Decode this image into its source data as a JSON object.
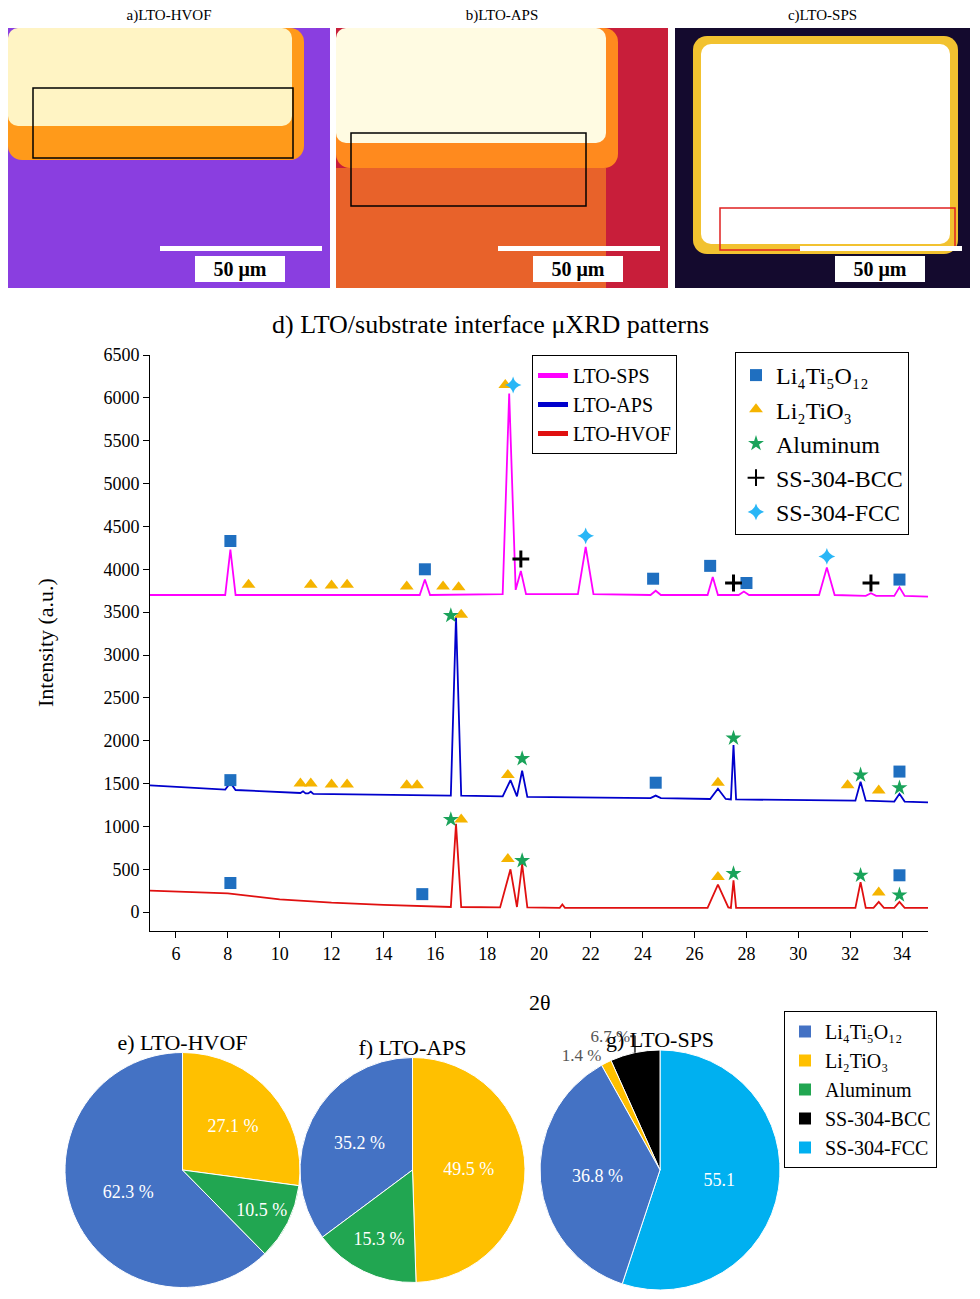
{
  "images": [
    {
      "title": "a)LTO-HVOF",
      "scale_bar": "50 μm"
    },
    {
      "title": "b)LTO-APS",
      "scale_bar": "50 μm"
    },
    {
      "title": "c)LTO-SPS",
      "scale_bar": "50 μm"
    }
  ],
  "chart_data": [
    {
      "type": "line",
      "title": "d) LTO/substrate interface μXRD patterns",
      "x_label": "2θ",
      "y_label": "Intensity (a.u.)",
      "xlim": [
        5,
        35
      ],
      "xticks": [
        6,
        8,
        10,
        12,
        14,
        16,
        18,
        20,
        22,
        24,
        26,
        28,
        30,
        32,
        34
      ],
      "ylim": [
        -220,
        6500
      ],
      "yticks": [
        0,
        500,
        1000,
        1500,
        2000,
        2500,
        3000,
        3500,
        4000,
        4500,
        5000,
        5500,
        6000,
        6500
      ],
      "grid": false,
      "legend": "top right",
      "series": [
        {
          "name": "LTO-SPS",
          "type": "line",
          "color": "#ff00ff",
          "x": [
            5,
            7.9,
            8.1,
            8.3,
            15.4,
            15.6,
            15.8,
            18.6,
            18.85,
            19.1,
            19.3,
            19.5,
            21.5,
            21.8,
            22.1,
            24.3,
            24.5,
            24.7,
            26.5,
            26.7,
            26.9,
            27.7,
            27.9,
            28.1,
            30.8,
            31.1,
            31.4,
            32.6,
            32.8,
            33.0,
            33.7,
            33.9,
            34.1,
            35
          ],
          "values": [
            3700,
            3700,
            4230,
            3700,
            3700,
            3880,
            3700,
            3710,
            6050,
            3760,
            3980,
            3710,
            3710,
            4260,
            3710,
            3700,
            3750,
            3700,
            3700,
            3910,
            3700,
            3700,
            3740,
            3700,
            3700,
            4020,
            3700,
            3690,
            3720,
            3690,
            3690,
            3790,
            3690,
            3680
          ]
        },
        {
          "name": "LTO-APS",
          "type": "line",
          "color": "#0000cc",
          "x": [
            5,
            7.9,
            8.1,
            8.3,
            10.8,
            10.9,
            11.0,
            11.1,
            11.2,
            11.3,
            16.6,
            16.8,
            17.0,
            18.6,
            18.9,
            19.15,
            19.35,
            19.55,
            24.3,
            24.5,
            24.7,
            26.6,
            26.9,
            27.2,
            27.4,
            27.5,
            27.6,
            32.2,
            32.4,
            32.6,
            33.7,
            33.9,
            34.1,
            35
          ],
          "values": [
            1480,
            1430,
            1510,
            1425,
            1390,
            1410,
            1385,
            1385,
            1405,
            1380,
            1360,
            3450,
            1360,
            1350,
            1540,
            1350,
            1650,
            1345,
            1330,
            1360,
            1330,
            1320,
            1440,
            1320,
            1315,
            1950,
            1315,
            1300,
            1520,
            1300,
            1290,
            1380,
            1290,
            1280
          ]
        },
        {
          "name": "LTO-HVOF",
          "type": "line",
          "color": "#e01010",
          "x": [
            5,
            8,
            10,
            12,
            14,
            16,
            16.6,
            16.8,
            17.0,
            18.5,
            18.9,
            19.15,
            19.35,
            19.55,
            20.8,
            20.9,
            21.0,
            26.5,
            26.9,
            27.3,
            27.4,
            27.5,
            27.6,
            32.2,
            32.4,
            32.6,
            32.9,
            33.1,
            33.3,
            33.7,
            33.9,
            34.1,
            35
          ],
          "values": [
            250,
            220,
            150,
            110,
            85,
            65,
            60,
            1030,
            60,
            55,
            500,
            60,
            560,
            55,
            50,
            90,
            50,
            50,
            320,
            55,
            50,
            370,
            50,
            50,
            350,
            50,
            50,
            120,
            50,
            50,
            120,
            50,
            50
          ]
        },
        {
          "name": "Li₄Ti₅O₁₂",
          "type": "scatter",
          "marker": "square",
          "color": "#1f6fc0",
          "x": [
            8.1,
            15.6,
            24.4,
            26.6,
            28.0,
            33.9,
            8.1,
            24.5,
            33.9,
            8.1,
            15.5,
            33.9
          ],
          "values": [
            4330,
            4000,
            3890,
            4040,
            3840,
            3880,
            1540,
            1510,
            1640,
            340,
            210,
            430
          ]
        },
        {
          "name": "Li₂TiO₃",
          "type": "scatter",
          "marker": "triangle",
          "color": "#f5b400",
          "x": [
            8.8,
            11.2,
            12.0,
            12.6,
            14.9,
            16.3,
            16.9,
            18.7,
            10.8,
            11.2,
            12.0,
            12.6,
            14.9,
            15.3,
            17.0,
            18.8,
            26.9,
            31.9,
            33.1,
            17.0,
            18.8,
            26.9,
            33.1
          ],
          "values": [
            3820,
            3820,
            3810,
            3820,
            3800,
            3800,
            3790,
            6150,
            1500,
            1500,
            1490,
            1490,
            1480,
            1480,
            3470,
            1600,
            1510,
            1480,
            1420,
            1080,
            620,
            410,
            230
          ]
        },
        {
          "name": "Aluminum",
          "type": "scatter",
          "marker": "star",
          "color": "#1aa35a",
          "x": [
            16.6,
            19.35,
            27.5,
            32.4,
            33.9,
            16.6,
            19.35,
            27.5,
            32.4,
            33.9
          ],
          "values": [
            3460,
            1790,
            2030,
            1600,
            1450,
            1080,
            600,
            450,
            430,
            200
          ]
        },
        {
          "name": "SS-304-BCC",
          "type": "scatter",
          "marker": "cross",
          "color": "#000000",
          "x": [
            19.3,
            27.5,
            32.8
          ],
          "values": [
            4120,
            3840,
            3840
          ]
        },
        {
          "name": "SS-304-FCC",
          "type": "scatter",
          "marker": "four_point_star",
          "color": "#29b6f6",
          "x": [
            19.0,
            21.8,
            31.1
          ],
          "values": [
            6150,
            4390,
            4150
          ]
        }
      ]
    },
    {
      "type": "pie",
      "legend": "right",
      "data_labels": true,
      "categories": [
        "Li₄Ti₅O₁₂",
        "Li₂TiO₃",
        "Aluminum",
        "SS-304-BCC",
        "SS-304-FCC"
      ],
      "colors": [
        "#4472c4",
        "#ffc000",
        "#21a651",
        "#000000",
        "#00b0f0"
      ],
      "pies": [
        {
          "title": "e) LTO-HVOF",
          "categories": [
            "Li₂TiO₃",
            "Li₄Ti₅O₁₂",
            "Aluminum"
          ],
          "values": [
            27.1,
            62.3,
            10.5
          ],
          "value_labels": [
            "27.1 %",
            "62.3 %",
            "10.5 %"
          ]
        },
        {
          "title": "f) LTO-APS",
          "categories": [
            "Li₂TiO₃",
            "Li₄Ti₅O₁₂",
            "Aluminum"
          ],
          "values": [
            49.5,
            35.2,
            15.3
          ],
          "value_labels": [
            "49.5 %",
            "35.2 %",
            "15.3 %"
          ]
        },
        {
          "title": "g) LTO-SPS",
          "categories": [
            "SS-304-FCC",
            "SS-304-BCC",
            "Li₂TiO₃",
            "Li₄Ti₅O₁₂"
          ],
          "values": [
            55.1,
            6.7,
            1.4,
            36.8
          ],
          "value_labels": [
            "55.1",
            "6.7 %",
            "1.4 %",
            "36.8 %"
          ]
        }
      ]
    }
  ]
}
